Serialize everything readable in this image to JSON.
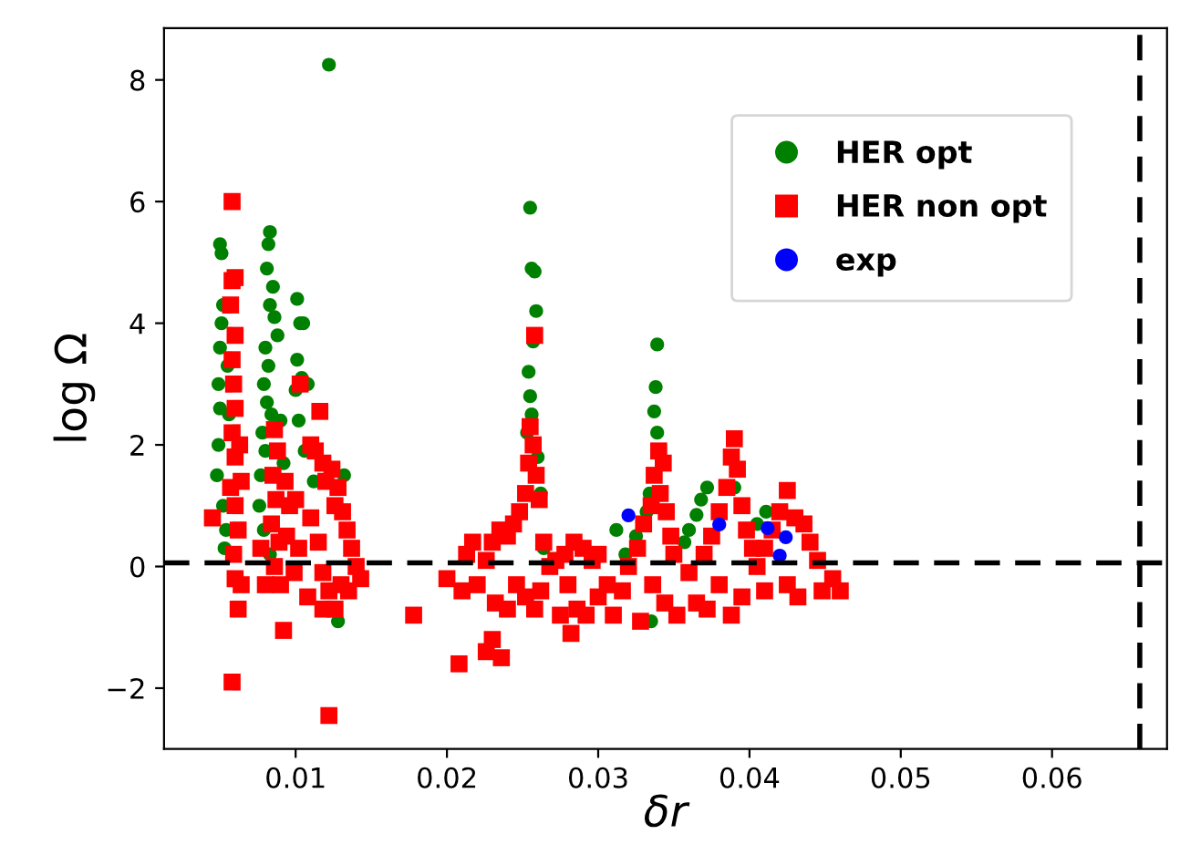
{
  "chart_data": {
    "type": "scatter",
    "xlabel": "δr",
    "ylabel": "log Ω",
    "xlim": [
      0.0013,
      0.0676
    ],
    "ylim": [
      -3.0,
      8.85
    ],
    "xticks": [
      0.01,
      0.02,
      0.03,
      0.04,
      0.05,
      0.06
    ],
    "yticks": [
      {
        "value": -2,
        "label": "−2"
      },
      0,
      2,
      4,
      6,
      8
    ],
    "grid": false,
    "legend": "top right",
    "ref_lines": [
      {
        "axis": "y",
        "value": 0.06,
        "color": "#000000",
        "line_style": "dashed"
      },
      {
        "axis": "x",
        "value": 0.0658,
        "color": "#000000",
        "line_style": "dashed"
      }
    ],
    "series": [
      {
        "name": "HER opt",
        "color": "#008000",
        "marker": "circle",
        "x": [
          0.005,
          0.0051,
          0.0052,
          0.0051,
          0.005,
          0.0049,
          0.005,
          0.0049,
          0.0048,
          0.0052,
          0.0054,
          0.0053,
          0.0056,
          0.0055,
          0.0083,
          0.0082,
          0.0081,
          0.0085,
          0.0083,
          0.0086,
          0.008,
          0.0082,
          0.0079,
          0.0081,
          0.0084,
          0.0078,
          0.008,
          0.0077,
          0.0076,
          0.0079,
          0.0083,
          0.0088,
          0.009,
          0.0092,
          0.0122,
          0.0101,
          0.0103,
          0.0105,
          0.0101,
          0.0104,
          0.01,
          0.0108,
          0.0102,
          0.0106,
          0.0112,
          0.0132,
          0.0128,
          0.0255,
          0.0256,
          0.0258,
          0.0259,
          0.0257,
          0.0254,
          0.0255,
          0.0256,
          0.0253,
          0.026,
          0.0262,
          0.0264,
          0.0339,
          0.0338,
          0.0337,
          0.0339,
          0.0334,
          0.0332,
          0.0325,
          0.0318,
          0.0312,
          0.0335,
          0.0368,
          0.0365,
          0.036,
          0.0357,
          0.0372,
          0.039,
          0.0405,
          0.0411
        ],
        "values": [
          5.3,
          5.15,
          4.3,
          4.0,
          3.6,
          3.0,
          2.6,
          2.0,
          1.5,
          1.0,
          0.6,
          0.3,
          2.5,
          3.3,
          5.5,
          5.3,
          4.9,
          4.6,
          4.3,
          4.1,
          3.6,
          3.3,
          3.0,
          2.7,
          2.5,
          2.2,
          1.9,
          1.5,
          1.0,
          0.6,
          0.2,
          3.8,
          2.4,
          1.7,
          8.25,
          4.4,
          4.0,
          4.0,
          3.4,
          3.1,
          2.9,
          3.0,
          2.4,
          1.9,
          1.4,
          1.5,
          -0.9,
          5.9,
          4.9,
          4.85,
          4.2,
          3.7,
          3.2,
          2.8,
          2.5,
          2.2,
          1.8,
          1.2,
          0.3,
          3.65,
          2.95,
          2.55,
          2.2,
          1.2,
          0.9,
          0.5,
          0.2,
          0.6,
          -0.9,
          1.1,
          0.85,
          0.6,
          0.4,
          1.3,
          1.3,
          0.7,
          0.9
        ]
      },
      {
        "name": "HER non opt",
        "color": "#ff0000",
        "marker": "square",
        "x": [
          0.0058,
          0.006,
          0.0058,
          0.0057,
          0.006,
          0.0058,
          0.0059,
          0.006,
          0.0058,
          0.006,
          0.0057,
          0.006,
          0.0062,
          0.0059,
          0.006,
          0.0062,
          0.0058,
          0.0045,
          0.0063,
          0.0064,
          0.0064,
          0.0086,
          0.0088,
          0.0085,
          0.0087,
          0.0084,
          0.0089,
          0.0086,
          0.009,
          0.0093,
          0.0096,
          0.0094,
          0.0099,
          0.0092,
          0.008,
          0.0077,
          0.0103,
          0.01,
          0.0102,
          0.0116,
          0.011,
          0.0113,
          0.0118,
          0.012,
          0.0124,
          0.0126,
          0.0128,
          0.0131,
          0.0134,
          0.0137,
          0.014,
          0.0143,
          0.011,
          0.0115,
          0.0118,
          0.0122,
          0.0126,
          0.0118,
          0.0122,
          0.0108,
          0.013,
          0.0135,
          0.0178,
          0.02,
          0.0208,
          0.021,
          0.0213,
          0.0217,
          0.022,
          0.0258,
          0.0255,
          0.0257,
          0.0254,
          0.0259,
          0.0252,
          0.0261,
          0.0248,
          0.0244,
          0.024,
          0.0235,
          0.023,
          0.0226,
          0.0264,
          0.0268,
          0.0272,
          0.0246,
          0.0252,
          0.024,
          0.0232,
          0.0226,
          0.023,
          0.0236,
          0.0258,
          0.0262,
          0.0278,
          0.0284,
          0.029,
          0.0296,
          0.028,
          0.0286,
          0.0292,
          0.03,
          0.0306,
          0.031,
          0.0316,
          0.03,
          0.0275,
          0.0282,
          0.034,
          0.0343,
          0.0337,
          0.0341,
          0.0335,
          0.0345,
          0.033,
          0.0348,
          0.0326,
          0.035,
          0.032,
          0.0336,
          0.0344,
          0.0352,
          0.0328,
          0.039,
          0.0388,
          0.0392,
          0.0385,
          0.0395,
          0.038,
          0.0398,
          0.0375,
          0.037,
          0.0402,
          0.036,
          0.038,
          0.0395,
          0.0372,
          0.0388,
          0.0365,
          0.0425,
          0.042,
          0.043,
          0.0436,
          0.0415,
          0.044,
          0.041,
          0.0445,
          0.0455,
          0.046,
          0.0425,
          0.0432,
          0.0448,
          0.041,
          0.0405
        ],
        "values": [
          6.0,
          4.75,
          4.7,
          4.3,
          3.8,
          3.4,
          3.0,
          2.6,
          2.2,
          1.8,
          1.3,
          1.0,
          0.6,
          0.2,
          -0.2,
          -0.7,
          -1.9,
          0.8,
          2.0,
          1.4,
          -0.3,
          2.25,
          1.9,
          1.5,
          1.1,
          0.7,
          0.4,
          0.0,
          -0.3,
          1.4,
          1.0,
          0.5,
          -0.1,
          -1.05,
          -0.3,
          0.3,
          3.0,
          1.1,
          0.3,
          2.55,
          2.0,
          1.9,
          1.7,
          1.4,
          1.6,
          1.0,
          1.3,
          0.9,
          0.6,
          0.3,
          0.0,
          -0.2,
          0.8,
          0.4,
          -0.1,
          -0.4,
          -0.7,
          -0.7,
          -2.45,
          -0.5,
          -0.3,
          -0.4,
          -0.8,
          -0.2,
          -1.6,
          -0.4,
          0.2,
          0.4,
          -0.3,
          3.8,
          2.3,
          2.0,
          1.7,
          1.5,
          1.2,
          1.1,
          0.9,
          0.7,
          0.5,
          0.6,
          0.4,
          0.1,
          0.4,
          0.0,
          0.1,
          -0.3,
          -0.5,
          -0.7,
          -0.6,
          -1.4,
          -1.2,
          -1.5,
          -0.7,
          -0.4,
          0.2,
          0.4,
          0.3,
          0.1,
          -0.3,
          -0.7,
          -0.8,
          -0.5,
          -0.3,
          -0.8,
          -0.4,
          0.2,
          -0.8,
          -1.1,
          1.9,
          1.7,
          1.5,
          1.2,
          1.0,
          0.9,
          0.7,
          0.5,
          0.3,
          0.2,
          0.0,
          -0.3,
          -0.6,
          -0.8,
          -0.9,
          2.1,
          1.8,
          1.6,
          1.3,
          1.0,
          0.9,
          0.6,
          0.5,
          0.2,
          0.3,
          -0.1,
          -0.3,
          -0.5,
          -0.7,
          -0.8,
          -0.6,
          1.25,
          0.9,
          0.8,
          0.7,
          0.6,
          0.4,
          0.3,
          0.1,
          -0.2,
          -0.4,
          -0.3,
          -0.5,
          -0.4,
          -0.4,
          0.0
        ]
      },
      {
        "name": "exp",
        "color": "#0000ff",
        "marker": "circle",
        "x": [
          0.032,
          0.038,
          0.0412,
          0.0424,
          0.042
        ],
        "values": [
          0.84,
          0.69,
          0.63,
          0.48,
          0.18
        ]
      }
    ]
  }
}
